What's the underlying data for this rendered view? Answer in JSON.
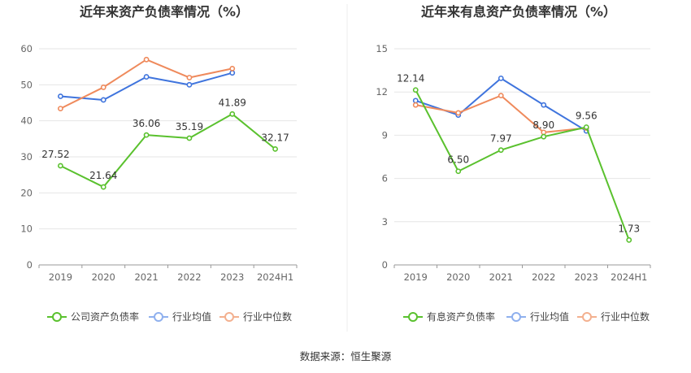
{
  "source": "数据来源：恒生聚源",
  "colors": {
    "green": "#5ac12e",
    "blue": "#3f74dd",
    "orange": "#ef8a5c",
    "grid": "#e6e6e6",
    "axis": "#999999"
  },
  "chart_data": [
    {
      "type": "line",
      "title": "近年来资产负债率情况（%）",
      "categories": [
        "2019",
        "2020",
        "2021",
        "2022",
        "2023",
        "2024H1"
      ],
      "ylim": [
        0,
        60
      ],
      "yticks": [
        "0",
        "10",
        "20",
        "30",
        "40",
        "50",
        "60"
      ],
      "series": [
        {
          "name": "公司资产负债率",
          "color": "#5ac12e",
          "values": [
            27.52,
            21.64,
            36.06,
            35.19,
            41.89,
            32.17
          ],
          "labels": [
            "27.52",
            "21.64",
            "36.06",
            "35.19",
            "41.89",
            "32.17"
          ]
        },
        {
          "name": "行业均值",
          "color": "#3f74dd",
          "values": [
            46.8,
            45.8,
            52.2,
            50.0,
            53.3,
            null
          ]
        },
        {
          "name": "行业中位数",
          "color": "#ef8a5c",
          "values": [
            43.4,
            49.3,
            57.0,
            52.0,
            54.5,
            null
          ]
        }
      ],
      "grid": true,
      "legend": "bottom"
    },
    {
      "type": "line",
      "title": "近年来有息资产负债率情况（%）",
      "categories": [
        "2019",
        "2020",
        "2021",
        "2022",
        "2023",
        "2024H1"
      ],
      "ylim": [
        0,
        15
      ],
      "yticks": [
        "0",
        "3",
        "6",
        "9",
        "12",
        "15"
      ],
      "series": [
        {
          "name": "有息资产负债率",
          "color": "#5ac12e",
          "values": [
            12.14,
            6.5,
            7.97,
            8.9,
            9.56,
            1.73
          ],
          "labels": [
            "12.14",
            "6.50",
            "7.97",
            "8.90",
            "9.56",
            "1.73"
          ]
        },
        {
          "name": "行业均值",
          "color": "#3f74dd",
          "values": [
            11.4,
            10.4,
            12.95,
            11.1,
            9.3,
            null
          ]
        },
        {
          "name": "行业中位数",
          "color": "#ef8a5c",
          "values": [
            11.1,
            10.55,
            11.75,
            9.2,
            9.5,
            null
          ]
        }
      ],
      "grid": true,
      "legend": "bottom"
    }
  ]
}
